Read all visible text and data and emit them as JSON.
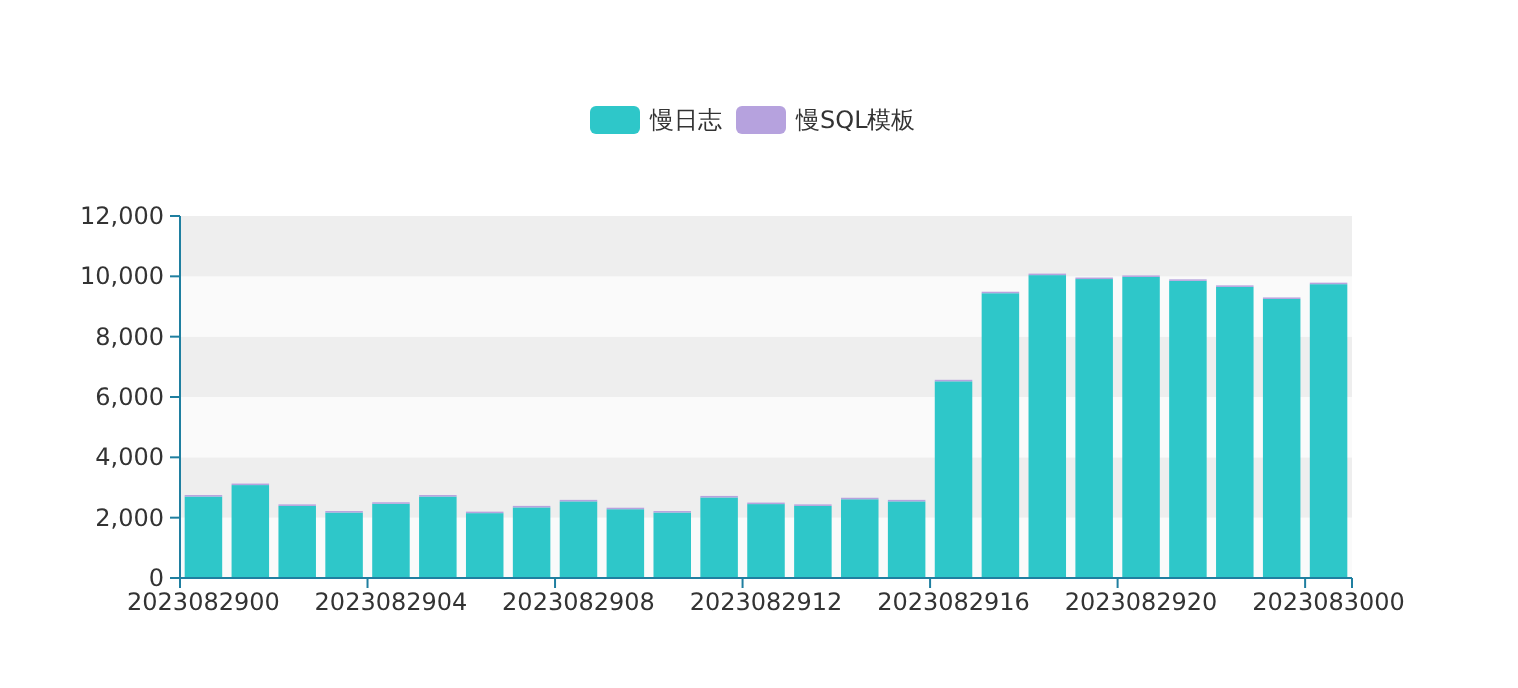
{
  "chart_data": {
    "type": "bar",
    "stacked": true,
    "categories": [
      "2023082900",
      null,
      null,
      null,
      "2023082904",
      null,
      null,
      null,
      "2023082908",
      null,
      null,
      null,
      "2023082912",
      null,
      null,
      null,
      "2023082916",
      null,
      null,
      null,
      "2023082920",
      null,
      null,
      null,
      "2023083000"
    ],
    "series": [
      {
        "name": "慢日志",
        "color": "#2ec7c9",
        "values": [
          2700,
          3080,
          2390,
          2170,
          2460,
          2700,
          2150,
          2340,
          2540,
          2280,
          2170,
          2670,
          2450,
          2390,
          2610,
          2540,
          6520,
          9440,
          10040,
          9910,
          9980,
          9850,
          9650,
          9250,
          9740
        ]
      },
      {
        "name": "慢SQL模板",
        "color": "#b6a2de",
        "values": [
          50,
          50,
          50,
          50,
          50,
          50,
          50,
          50,
          50,
          50,
          50,
          50,
          50,
          50,
          50,
          50,
          50,
          50,
          50,
          50,
          50,
          50,
          50,
          50,
          50
        ]
      }
    ],
    "ylim": [
      0,
      12000
    ],
    "yticks": [
      {
        "value": 0,
        "label": "0"
      },
      {
        "value": 2000,
        "label": "2,000"
      },
      {
        "value": 4000,
        "label": "4,000"
      },
      {
        "value": 6000,
        "label": "6,000"
      },
      {
        "value": 8000,
        "label": "8,000"
      },
      {
        "value": 10000,
        "label": "10,000"
      },
      {
        "value": 12000,
        "label": "12,000"
      }
    ],
    "legend": "top"
  }
}
